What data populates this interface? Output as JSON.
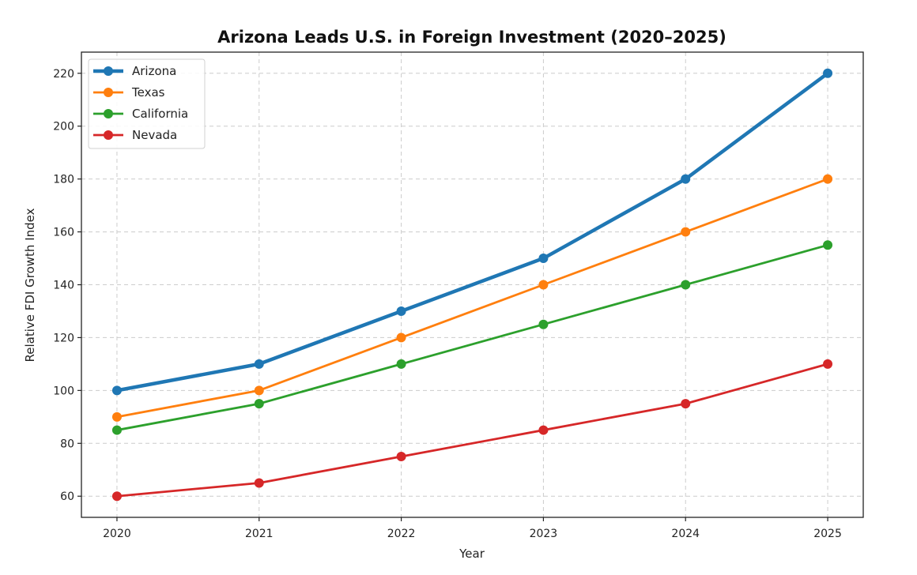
{
  "chart_data": {
    "type": "line",
    "title": "Arizona Leads U.S. in Foreign Investment (2020–2025)",
    "xlabel": "Year",
    "ylabel": "Relative FDI Growth Index",
    "x": [
      2020,
      2021,
      2022,
      2023,
      2024,
      2025
    ],
    "x_tick_labels": [
      "2020",
      "2021",
      "2022",
      "2023",
      "2024",
      "2025"
    ],
    "y_ticks": [
      60,
      80,
      100,
      120,
      140,
      160,
      180,
      200,
      220
    ],
    "y_tick_labels": [
      "60",
      "80",
      "100",
      "120",
      "140",
      "160",
      "180",
      "200",
      "220"
    ],
    "xlim": [
      2019.75,
      2025.25
    ],
    "ylim": [
      52,
      228
    ],
    "grid": true,
    "legend_position": "top-left",
    "series": [
      {
        "name": "Arizona",
        "color": "#1f77b4",
        "values": [
          100,
          110,
          130,
          150,
          180,
          220
        ],
        "emphasis": true
      },
      {
        "name": "Texas",
        "color": "#ff7f0e",
        "values": [
          90,
          100,
          120,
          140,
          160,
          180
        ]
      },
      {
        "name": "California",
        "color": "#2ca02c",
        "values": [
          85,
          95,
          110,
          125,
          140,
          155
        ]
      },
      {
        "name": "Nevada",
        "color": "#d62728",
        "values": [
          60,
          65,
          75,
          85,
          95,
          110
        ]
      }
    ]
  }
}
